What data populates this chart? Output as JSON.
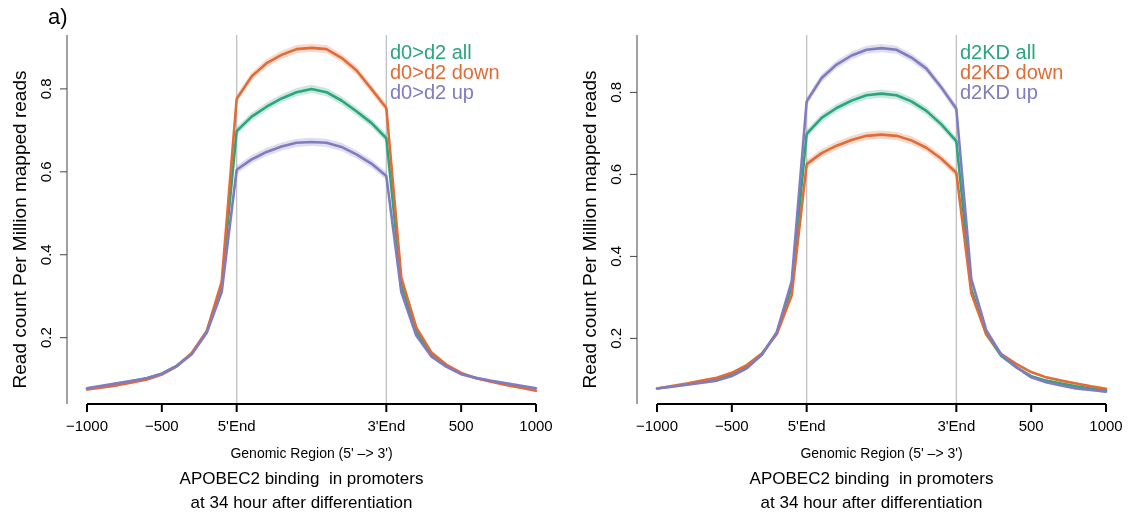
{
  "chart_data": [
    {
      "type": "line",
      "title": "a)",
      "xlabel": "Genomic Region (5' –> 3')",
      "ylabel": "Read count Per Million mapped reads",
      "annotations": [
        "APOBEC2 binding  in promoters",
        "at 34 hour after differentiation"
      ],
      "categories": [
        "−1000",
        null,
        null,
        null,
        null,
        "−500",
        null,
        null,
        null,
        null,
        "5'End",
        null,
        null,
        null,
        null,
        null,
        null,
        null,
        null,
        null,
        "3'End",
        null,
        null,
        null,
        null,
        "500",
        null,
        null,
        null,
        null,
        "1000"
      ],
      "ylim": [
        0.04,
        0.93
      ],
      "yticks": [
        0.2,
        0.4,
        0.6,
        0.8
      ],
      "legend": "top right",
      "ref_lines": [
        {
          "axis": "x",
          "value": "5'End",
          "color": "#c0c0c0"
        },
        {
          "axis": "x",
          "value": "3'End",
          "color": "#c0c0c0"
        }
      ],
      "series": [
        {
          "name": "d0>d2 all",
          "color": "#2ba57c",
          "values": [
            null,
            null,
            null,
            0.095,
            0.102,
            0.113,
            0.132,
            0.162,
            0.214,
            0.326,
            0.698,
            0.733,
            0.757,
            0.777,
            0.792,
            0.8,
            0.792,
            0.772,
            0.746,
            0.718,
            0.681,
            0.326,
            0.214,
            0.158,
            0.132,
            0.113,
            null,
            null,
            null,
            null,
            null
          ],
          "lower": [
            0.075,
            0.08,
            0.086,
            0.092,
            0.099,
            0.11,
            0.129,
            0.159,
            0.211,
            0.323,
            0.688,
            0.723,
            0.747,
            0.767,
            0.782,
            0.79,
            0.782,
            0.762,
            0.736,
            0.708,
            0.671,
            0.323,
            0.211,
            0.155,
            0.129,
            0.11,
            0.099,
            0.092,
            0.086,
            0.079,
            0.073
          ],
          "upper": [
            0.081,
            0.086,
            0.092,
            0.098,
            0.105,
            0.116,
            0.135,
            0.165,
            0.217,
            0.329,
            0.708,
            0.743,
            0.767,
            0.787,
            0.802,
            0.81,
            0.802,
            0.782,
            0.756,
            0.728,
            0.691,
            0.329,
            0.217,
            0.161,
            0.135,
            0.116,
            0.105,
            0.098,
            0.092,
            0.085,
            0.079
          ]
        },
        {
          "name": "d0>d2 down",
          "color": "#e06c37",
          "values": [
            0.075,
            0.08,
            0.085,
            0.092,
            0.099,
            0.111,
            0.131,
            0.163,
            0.216,
            0.335,
            0.776,
            0.83,
            0.862,
            0.882,
            0.896,
            0.899,
            0.896,
            0.875,
            0.845,
            0.8,
            0.754,
            0.345,
            0.225,
            0.165,
            0.135,
            0.115,
            0.102,
            0.094,
            0.086,
            0.079,
            0.072
          ],
          "lower": [
            0.072,
            0.077,
            0.082,
            0.089,
            0.096,
            0.108,
            0.128,
            0.16,
            0.213,
            0.332,
            0.766,
            0.82,
            0.852,
            0.872,
            0.886,
            0.889,
            0.886,
            0.865,
            0.835,
            0.79,
            0.744,
            0.342,
            0.222,
            0.162,
            0.132,
            0.112,
            0.099,
            0.091,
            0.083,
            0.076,
            0.069
          ],
          "upper": [
            0.078,
            0.083,
            0.088,
            0.095,
            0.102,
            0.114,
            0.134,
            0.166,
            0.219,
            0.338,
            0.786,
            0.84,
            0.872,
            0.892,
            0.906,
            0.909,
            0.906,
            0.885,
            0.855,
            0.81,
            0.764,
            0.348,
            0.228,
            0.168,
            0.138,
            0.118,
            0.105,
            0.097,
            0.089,
            0.082,
            0.075
          ]
        },
        {
          "name": "d0>d2 up",
          "color": "#7f7cc0",
          "values": [
            0.078,
            0.084,
            0.09,
            0.096,
            0.102,
            0.113,
            0.132,
            0.16,
            0.212,
            0.31,
            0.605,
            0.63,
            0.648,
            0.661,
            0.67,
            0.672,
            0.67,
            0.66,
            0.642,
            0.62,
            0.59,
            0.31,
            0.205,
            0.155,
            0.13,
            0.112,
            0.103,
            0.096,
            0.09,
            0.084,
            0.078
          ],
          "lower": [
            0.075,
            0.081,
            0.087,
            0.093,
            0.099,
            0.11,
            0.129,
            0.157,
            0.209,
            0.307,
            0.595,
            0.62,
            0.638,
            0.651,
            0.66,
            0.662,
            0.66,
            0.65,
            0.632,
            0.61,
            0.58,
            0.307,
            0.202,
            0.152,
            0.127,
            0.109,
            0.1,
            0.093,
            0.087,
            0.081,
            0.075
          ],
          "upper": [
            0.081,
            0.087,
            0.093,
            0.099,
            0.105,
            0.116,
            0.135,
            0.163,
            0.215,
            0.313,
            0.615,
            0.64,
            0.658,
            0.671,
            0.68,
            0.682,
            0.68,
            0.67,
            0.652,
            0.63,
            0.6,
            0.313,
            0.208,
            0.158,
            0.133,
            0.115,
            0.106,
            0.099,
            0.093,
            0.087,
            0.081
          ]
        }
      ]
    },
    {
      "type": "line",
      "xlabel": "Genomic Region (5' –> 3')",
      "ylabel": "Read count Per Million mapped reads",
      "annotations": [
        "APOBEC2 binding  in promoters",
        "at 34 hour after differentiation"
      ],
      "categories": [
        "−1000",
        null,
        null,
        null,
        null,
        "−500",
        null,
        null,
        null,
        null,
        "5'End",
        null,
        null,
        null,
        null,
        null,
        null,
        null,
        null,
        null,
        "3'End",
        null,
        null,
        null,
        null,
        "500",
        null,
        null,
        null,
        null,
        "1000"
      ],
      "ylim": [
        0.04,
        0.94
      ],
      "yticks": [
        0.2,
        0.4,
        0.6,
        0.8
      ],
      "legend": "top right",
      "ref_lines": [
        {
          "axis": "x",
          "value": "5'End",
          "color": "#c0c0c0"
        },
        {
          "axis": "x",
          "value": "3'End",
          "color": "#c0c0c0"
        }
      ],
      "series": [
        {
          "name": "d2KD all",
          "color": "#2ba57c",
          "values": [
            null,
            null,
            null,
            0.094,
            0.1,
            0.112,
            0.13,
            0.16,
            0.213,
            0.325,
            0.699,
            0.738,
            0.762,
            0.78,
            0.793,
            0.797,
            0.793,
            0.778,
            0.755,
            0.722,
            0.681,
            0.32,
            0.21,
            0.157,
            0.13,
            0.108,
            0.097,
            0.09,
            0.083,
            0.078,
            0.073
          ],
          "lower": [
            0.075,
            0.08,
            0.085,
            0.091,
            0.097,
            0.109,
            0.127,
            0.157,
            0.21,
            0.322,
            0.689,
            0.728,
            0.752,
            0.77,
            0.783,
            0.787,
            0.783,
            0.768,
            0.745,
            0.712,
            0.671,
            0.317,
            0.207,
            0.154,
            0.127,
            0.105,
            0.094,
            0.087,
            0.08,
            0.075,
            0.07
          ],
          "upper": [
            0.081,
            0.086,
            0.091,
            0.097,
            0.103,
            0.115,
            0.133,
            0.163,
            0.216,
            0.328,
            0.709,
            0.748,
            0.772,
            0.79,
            0.803,
            0.807,
            0.803,
            0.788,
            0.765,
            0.732,
            0.691,
            0.323,
            0.213,
            0.16,
            0.133,
            0.111,
            0.1,
            0.093,
            0.086,
            0.081,
            0.076
          ]
        },
        {
          "name": "d2KD down",
          "color": "#e06c37",
          "values": [
            0.078,
            0.084,
            0.09,
            0.097,
            0.104,
            0.116,
            0.135,
            0.163,
            0.21,
            0.305,
            0.625,
            0.652,
            0.67,
            0.684,
            0.694,
            0.697,
            0.694,
            0.683,
            0.665,
            0.638,
            0.604,
            0.31,
            0.21,
            0.162,
            0.138,
            0.118,
            0.105,
            0.097,
            0.09,
            0.083,
            0.077
          ],
          "lower": [
            0.075,
            0.081,
            0.087,
            0.094,
            0.101,
            0.113,
            0.132,
            0.16,
            0.207,
            0.302,
            0.615,
            0.642,
            0.66,
            0.674,
            0.684,
            0.687,
            0.684,
            0.673,
            0.655,
            0.628,
            0.594,
            0.307,
            0.207,
            0.159,
            0.135,
            0.115,
            0.102,
            0.094,
            0.087,
            0.08,
            0.074
          ],
          "upper": [
            0.081,
            0.087,
            0.093,
            0.1,
            0.107,
            0.119,
            0.138,
            0.166,
            0.213,
            0.308,
            0.635,
            0.662,
            0.68,
            0.694,
            0.704,
            0.707,
            0.704,
            0.693,
            0.675,
            0.648,
            0.614,
            0.313,
            0.213,
            0.165,
            0.141,
            0.121,
            0.108,
            0.1,
            0.093,
            0.086,
            0.08
          ]
        },
        {
          "name": "d2KD up",
          "color": "#7f7cc0",
          "values": [
            0.078,
            0.082,
            0.087,
            0.092,
            0.097,
            0.108,
            0.127,
            0.16,
            0.215,
            0.34,
            0.778,
            0.835,
            0.868,
            0.89,
            0.904,
            0.908,
            0.904,
            0.885,
            0.858,
            0.812,
            0.76,
            0.345,
            0.22,
            0.16,
            0.13,
            0.105,
            0.093,
            0.085,
            0.078,
            0.074,
            0.07
          ],
          "lower": [
            0.075,
            0.079,
            0.084,
            0.089,
            0.094,
            0.105,
            0.124,
            0.157,
            0.212,
            0.337,
            0.768,
            0.825,
            0.858,
            0.88,
            0.894,
            0.898,
            0.894,
            0.875,
            0.848,
            0.802,
            0.75,
            0.342,
            0.217,
            0.157,
            0.127,
            0.102,
            0.09,
            0.082,
            0.075,
            0.071,
            0.067
          ],
          "upper": [
            0.081,
            0.085,
            0.09,
            0.095,
            0.1,
            0.111,
            0.13,
            0.163,
            0.218,
            0.343,
            0.788,
            0.845,
            0.878,
            0.9,
            0.914,
            0.918,
            0.914,
            0.895,
            0.868,
            0.822,
            0.77,
            0.348,
            0.223,
            0.163,
            0.133,
            0.108,
            0.096,
            0.088,
            0.081,
            0.077,
            0.073
          ]
        }
      ]
    }
  ]
}
